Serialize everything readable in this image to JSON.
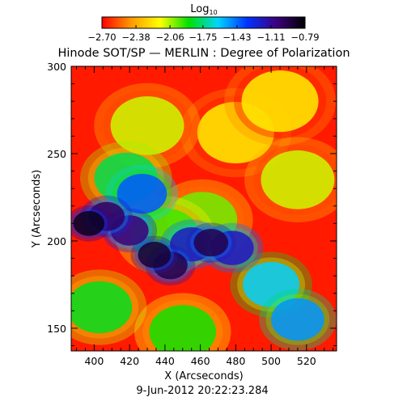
{
  "chart_data": {
    "type": "heatmap",
    "title": "Hinode SOT/SP — MERLIN : Degree of Polarization",
    "xlabel": "X (Arcseconds)",
    "ylabel": "Y (Arcseconds)",
    "footer": "9-Jun-2012 20:22:23.284",
    "colorbar": {
      "label_base": "Log",
      "label_sub": "10",
      "tick_labels": [
        "−2.70",
        "−2.38",
        "−2.06",
        "−1.75",
        "−1.43",
        "−1.11",
        "−0.79"
      ],
      "ticks": [
        -2.7,
        -2.38,
        -2.06,
        -1.75,
        -1.43,
        -1.11,
        -0.79
      ],
      "range": [
        -2.7,
        -0.79
      ],
      "colors": [
        "#ff0000",
        "#ff9900",
        "#ffff00",
        "#00e000",
        "#00d5ff",
        "#0033ff",
        "#3d0080",
        "#000000"
      ]
    },
    "xlim": [
      387,
      537
    ],
    "ylim": [
      137,
      300
    ],
    "x_ticks": [
      400,
      420,
      440,
      460,
      480,
      500,
      520
    ],
    "y_ticks": [
      150,
      200,
      250,
      300
    ],
    "x_minor_step": 5,
    "y_minor_step": 10,
    "regions": [
      {
        "x": 397,
        "y": 210,
        "value": -0.85
      },
      {
        "x": 407,
        "y": 214,
        "value": -1.0
      },
      {
        "x": 420,
        "y": 206,
        "value": -1.05
      },
      {
        "x": 434,
        "y": 192,
        "value": -0.9
      },
      {
        "x": 443,
        "y": 186,
        "value": -0.95
      },
      {
        "x": 455,
        "y": 198,
        "value": -1.2
      },
      {
        "x": 466,
        "y": 199,
        "value": -0.95
      },
      {
        "x": 478,
        "y": 196,
        "value": -1.2
      },
      {
        "x": 427,
        "y": 227,
        "value": -1.4
      },
      {
        "x": 500,
        "y": 175,
        "value": -1.6
      },
      {
        "x": 515,
        "y": 155,
        "value": -1.5
      },
      {
        "x": 440,
        "y": 203,
        "value": -1.95
      },
      {
        "x": 461,
        "y": 212,
        "value": -2.0
      },
      {
        "x": 418,
        "y": 236,
        "value": -1.8
      },
      {
        "x": 403,
        "y": 162,
        "value": -1.85
      },
      {
        "x": 450,
        "y": 148,
        "value": -1.9
      },
      {
        "x": 430,
        "y": 266,
        "value": -2.1
      },
      {
        "x": 480,
        "y": 262,
        "value": -2.2
      },
      {
        "x": 515,
        "y": 235,
        "value": -2.1
      },
      {
        "x": 505,
        "y": 280,
        "value": -2.2
      }
    ]
  }
}
